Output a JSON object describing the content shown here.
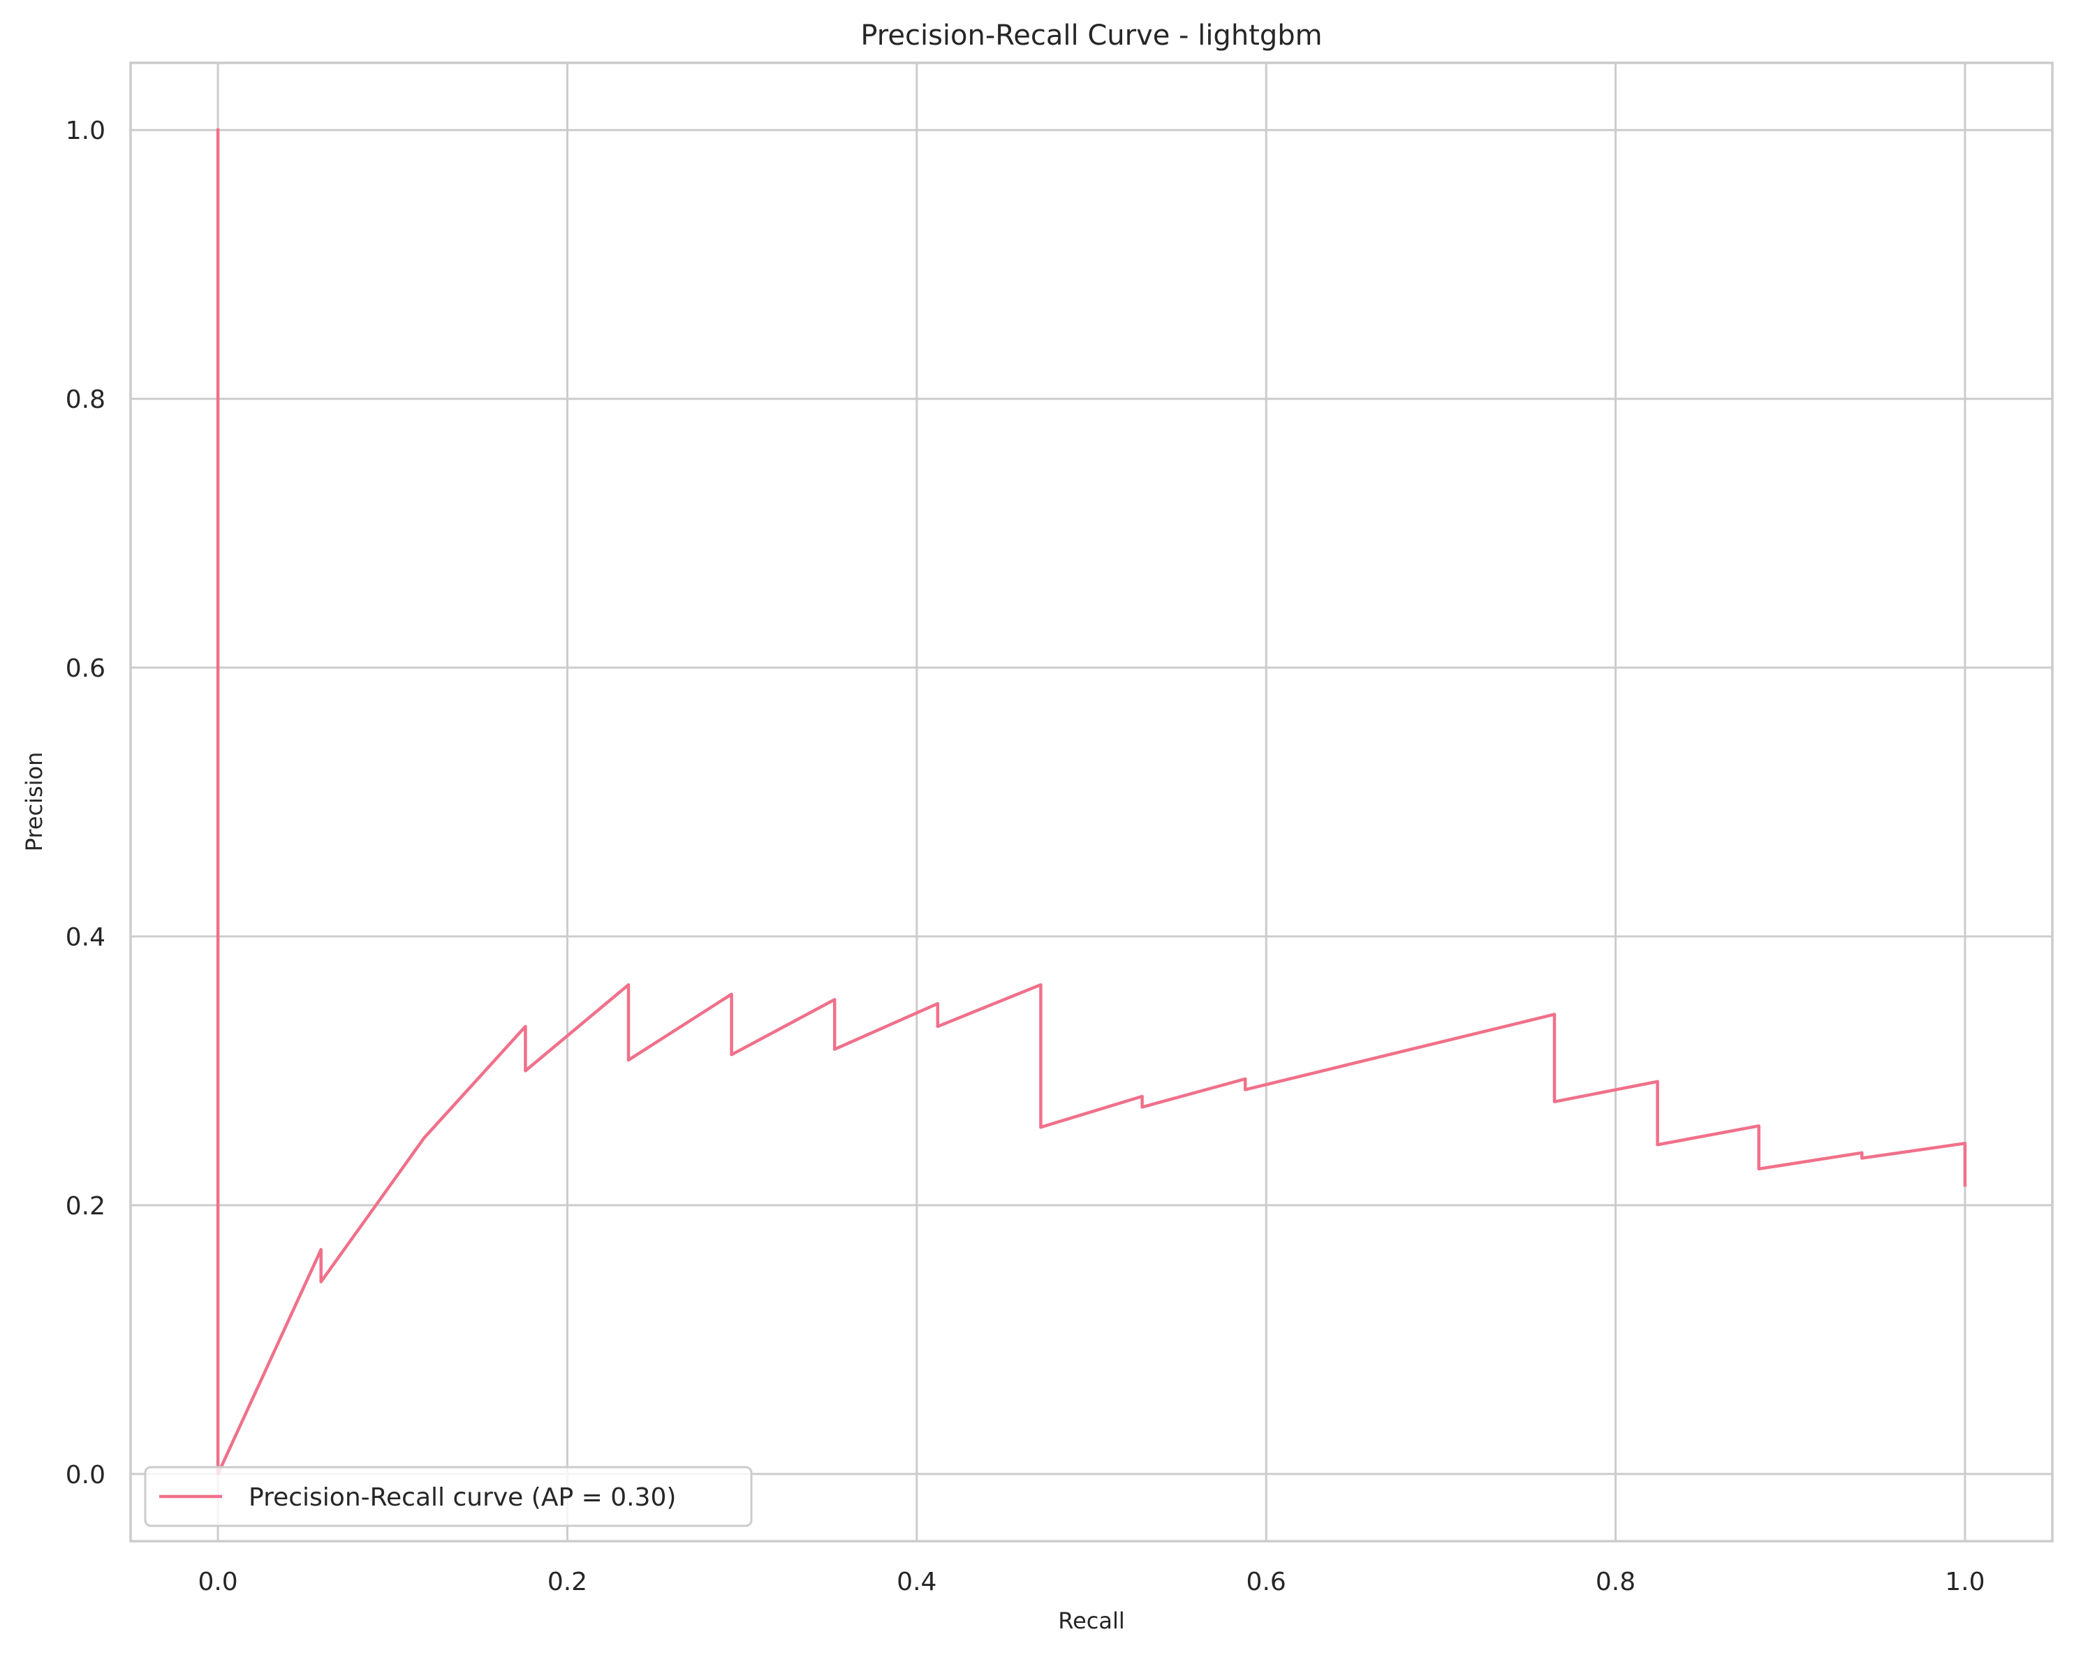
{
  "chart_data": {
    "type": "line",
    "title": "Precision-Recall Curve - lightgbm",
    "xlabel": "Recall",
    "ylabel": "Precision",
    "xlim": [
      -0.05,
      1.05
    ],
    "ylim": [
      -0.05,
      1.05
    ],
    "x_ticks": [
      0.0,
      0.2,
      0.4,
      0.6,
      0.8,
      1.0
    ],
    "y_ticks": [
      0.0,
      0.2,
      0.4,
      0.6,
      0.8,
      1.0
    ],
    "x_tick_labels": [
      "0.0",
      "0.2",
      "0.4",
      "0.6",
      "0.8",
      "1.0"
    ],
    "y_tick_labels": [
      "0.0",
      "0.2",
      "0.4",
      "0.6",
      "0.8",
      "1.0"
    ],
    "grid": true,
    "legend_position": "lower-left",
    "series": [
      {
        "name": "Precision-Recall curve (AP = 0.30)",
        "color": "#f0708a",
        "points": [
          [
            0.0,
            1.0
          ],
          [
            0.0,
            0.0
          ],
          [
            0.059,
            0.167
          ],
          [
            0.059,
            0.143
          ],
          [
            0.118,
            0.25
          ],
          [
            0.176,
            0.333
          ],
          [
            0.176,
            0.3
          ],
          [
            0.235,
            0.364
          ],
          [
            0.235,
            0.308
          ],
          [
            0.294,
            0.357
          ],
          [
            0.294,
            0.312
          ],
          [
            0.353,
            0.353
          ],
          [
            0.353,
            0.316
          ],
          [
            0.412,
            0.35
          ],
          [
            0.412,
            0.333
          ],
          [
            0.471,
            0.364
          ],
          [
            0.471,
            0.258
          ],
          [
            0.529,
            0.281
          ],
          [
            0.529,
            0.273
          ],
          [
            0.588,
            0.294
          ],
          [
            0.588,
            0.286
          ],
          [
            0.765,
            0.342
          ],
          [
            0.765,
            0.277
          ],
          [
            0.824,
            0.292
          ],
          [
            0.824,
            0.245
          ],
          [
            0.882,
            0.259
          ],
          [
            0.882,
            0.227
          ],
          [
            0.941,
            0.239
          ],
          [
            0.941,
            0.235
          ],
          [
            1.0,
            0.246
          ],
          [
            1.0,
            0.215
          ]
        ]
      }
    ]
  }
}
